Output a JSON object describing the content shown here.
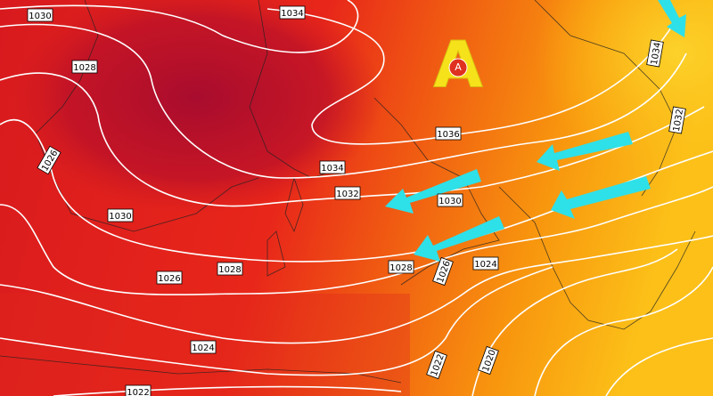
{
  "pressure_center": {
    "label": "A",
    "marker": "A"
  },
  "isobar_labels": [
    "1030",
    "1034",
    "1028",
    "1026",
    "1030",
    "1034",
    "1036",
    "1032",
    "1030",
    "1028",
    "1026",
    "1028",
    "1026",
    "1024",
    "1024",
    "1022",
    "1022",
    "1020",
    "1032",
    "1034"
  ]
}
